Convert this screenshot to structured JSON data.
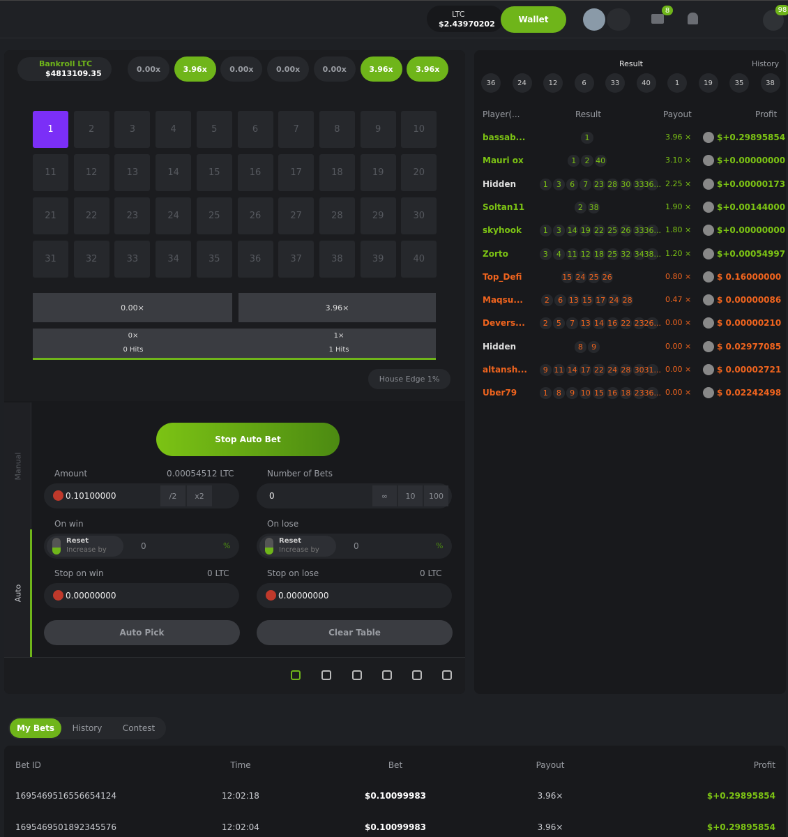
{
  "header": {
    "currency": "LTC",
    "balance": "$2.43970202",
    "wallet": "Wallet",
    "mail_badge": "8",
    "notif_badge": "98"
  },
  "game": {
    "bankroll_label": "Bankroll LTC",
    "bankroll": "$4813109.35",
    "multipliers": [
      {
        "label": "0.00x",
        "active": false
      },
      {
        "label": "3.96x",
        "active": true
      },
      {
        "label": "0.00x",
        "active": false
      },
      {
        "label": "0.00x",
        "active": false
      },
      {
        "label": "0.00x",
        "active": false
      },
      {
        "label": "3.96x",
        "active": true
      },
      {
        "label": "3.96x",
        "active": true
      }
    ],
    "tiles": [
      1,
      2,
      3,
      4,
      5,
      6,
      7,
      8,
      9,
      10,
      11,
      12,
      13,
      14,
      15,
      16,
      17,
      18,
      19,
      20,
      21,
      22,
      23,
      24,
      25,
      26,
      27,
      28,
      29,
      30,
      31,
      32,
      33,
      34,
      35,
      36,
      37,
      38,
      39,
      40
    ],
    "selected": 1,
    "payouts": [
      {
        "multiplier": "0.00×",
        "label": "0×",
        "hits": "0 Hits"
      },
      {
        "multiplier": "3.96×",
        "label": "1×",
        "hits": "1 Hits"
      }
    ],
    "house_edge": "House Edge 1%"
  },
  "controls": {
    "tab_manual": "Manual",
    "tab_auto": "Auto",
    "stop_button": "Stop Auto Bet",
    "amount_label": "Amount",
    "amount_ltc": "0.00054512 LTC",
    "amount": "0.10100000",
    "half": "/2",
    "double": "x2",
    "bets_label": "Number of Bets",
    "bets": "0",
    "bets_options": [
      "∞",
      "10",
      "100"
    ],
    "on_win_label": "On win",
    "on_lose_label": "On lose",
    "reset": "Reset",
    "increase_by": "Increase by",
    "increase_value": "0",
    "percent": "%",
    "stop_win_label": "Stop on win",
    "stop_win_ltc": "0 LTC",
    "stop_win": "0.00000000",
    "stop_lose_label": "Stop on lose",
    "stop_lose_ltc": "0 LTC",
    "stop_lose": "0.00000000",
    "auto_pick": "Auto Pick",
    "clear_table": "Clear Table"
  },
  "live": {
    "result_label": "Result",
    "history_label": "History",
    "recent": [
      "36",
      "24",
      "12",
      "6",
      "33",
      "40",
      "1",
      "19",
      "35",
      "38"
    ],
    "columns": [
      "Player(...",
      "Result",
      "Payout",
      "Profit"
    ],
    "rows": [
      {
        "player": "bassab...",
        "results": [
          "1"
        ],
        "payout": "3.96 ×",
        "profit": "$+0.29895854",
        "color": "#7cc314"
      },
      {
        "player": "Mauri ox",
        "results": [
          "1",
          "2",
          "40"
        ],
        "payout": "3.10 ×",
        "profit": "$+0.00000000",
        "color": "#7cc314"
      },
      {
        "player": "Hidden",
        "results": [
          "1",
          "3",
          "6",
          "7",
          "23",
          "28",
          "30",
          "33",
          "36..."
        ],
        "payout": "2.25 ×",
        "profit": "$+0.00000173",
        "color": "#7cc314"
      },
      {
        "player": "Soltan11",
        "results": [
          "2",
          "38"
        ],
        "payout": "1.90 ×",
        "profit": "$+0.00144000",
        "color": "#7cc314"
      },
      {
        "player": "skyhook",
        "results": [
          "1",
          "3",
          "14",
          "19",
          "22",
          "25",
          "26",
          "33",
          "36..."
        ],
        "payout": "1.80 ×",
        "profit": "$+0.00000000",
        "color": "#7cc314"
      },
      {
        "player": "Zorto",
        "results": [
          "3",
          "4",
          "11",
          "12",
          "18",
          "25",
          "32",
          "34",
          "38..."
        ],
        "payout": "1.20 ×",
        "profit": "$+0.00054997",
        "color": "#7cc314"
      },
      {
        "player": "Top_Defi",
        "results": [
          "15",
          "24",
          "25",
          "26"
        ],
        "payout": "0.80 ×",
        "profit": "$ 0.16000000",
        "color": "#f0641e"
      },
      {
        "player": "Maqsu...",
        "results": [
          "2",
          "6",
          "13",
          "15",
          "17",
          "24",
          "28"
        ],
        "payout": "0.47 ×",
        "profit": "$ 0.00000086",
        "color": "#f0641e"
      },
      {
        "player": "Devers...",
        "results": [
          "2",
          "5",
          "7",
          "13",
          "14",
          "16",
          "22",
          "23",
          "26..."
        ],
        "payout": "0.00 ×",
        "profit": "$ 0.00000210",
        "color": "#f0641e"
      },
      {
        "player": "Hidden",
        "results": [
          "8",
          "9"
        ],
        "payout": "0.00 ×",
        "profit": "$ 0.02977085",
        "color": "#f0641e"
      },
      {
        "player": "altansh...",
        "results": [
          "9",
          "11",
          "14",
          "17",
          "22",
          "24",
          "28",
          "30",
          "31..."
        ],
        "payout": "0.00 ×",
        "profit": "$ 0.00002721",
        "color": "#f0641e"
      },
      {
        "player": "Uber79",
        "results": [
          "1",
          "8",
          "9",
          "10",
          "15",
          "16",
          "18",
          "23",
          "36..."
        ],
        "payout": "0.00 ×",
        "profit": "$ 0.02242498",
        "color": "#f0641e"
      }
    ]
  },
  "bets": {
    "tabs": [
      "My Bets",
      "History",
      "Contest"
    ],
    "columns": [
      "Bet ID",
      "Time",
      "Bet",
      "Payout",
      "Profit"
    ],
    "rows": [
      [
        "1695469516556654124",
        "12:02:18",
        "$0.10099983",
        "3.96×",
        "$+0.29895854"
      ],
      [
        "1695469501892345576",
        "12:02:04",
        "$0.10099983",
        "3.96×",
        "$+0.29895854"
      ]
    ]
  }
}
